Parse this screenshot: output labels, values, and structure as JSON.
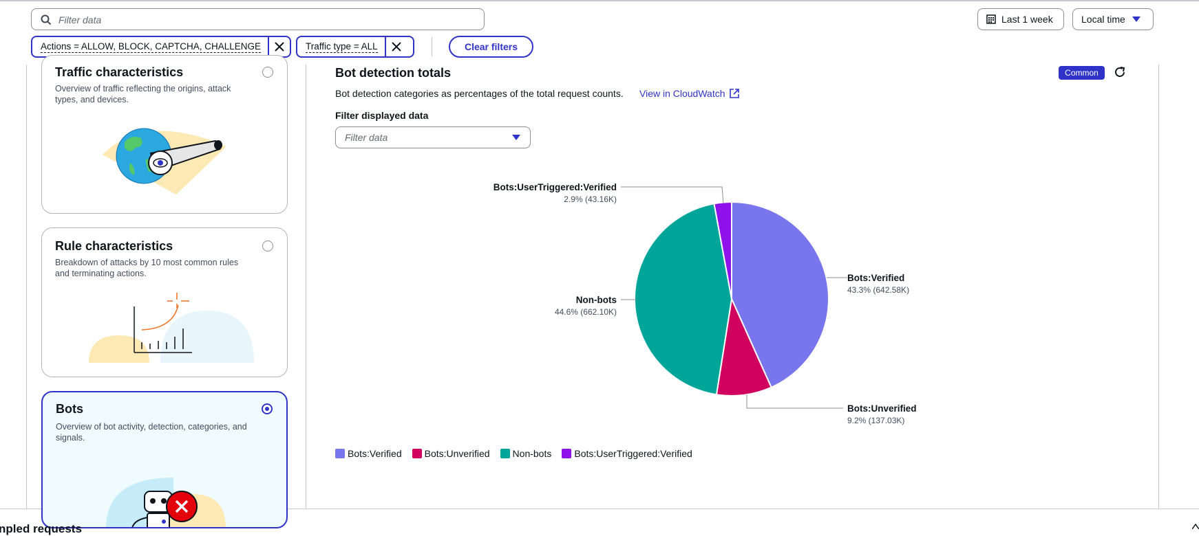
{
  "toolbar": {
    "search_placeholder": "Filter data",
    "time_range_label": "Last 1 week",
    "time_zone_label": "Local time",
    "filters": [
      {
        "label": "Actions = ALLOW, BLOCK, CAPTCHA, CHALLENGE"
      },
      {
        "label": "Traffic type = ALL"
      }
    ],
    "clear_filters_label": "Clear filters"
  },
  "cards": [
    {
      "title": "Traffic characteristics",
      "description": "Overview of traffic reflecting the origins, attack types, and devices.",
      "selected": false
    },
    {
      "title": "Rule characteristics",
      "description": "Breakdown of attacks by 10 most common rules and terminating actions.",
      "selected": false
    },
    {
      "title": "Bots",
      "description": "Overview of bot activity, detection, categories, and signals.",
      "selected": true
    }
  ],
  "panel": {
    "title": "Bot detection totals",
    "badge": "Common",
    "description": "Bot detection categories as percentages of the total request counts.",
    "cloudwatch_link": "View in CloudWatch",
    "filter_label": "Filter displayed data",
    "filter_placeholder": "Filter data"
  },
  "chart_data": {
    "type": "pie",
    "title": "Bot detection totals",
    "slices": [
      {
        "name": "Bots:Verified",
        "percent": 43.3,
        "count_label": "642.58K",
        "value_label": "43.3% (642.58K)",
        "color": "#7875ed"
      },
      {
        "name": "Bots:Unverified",
        "percent": 9.2,
        "count_label": "137.03K",
        "value_label": "9.2% (137.03K)",
        "color": "#d1025f"
      },
      {
        "name": "Non-bots",
        "percent": 44.6,
        "count_label": "662.10K",
        "value_label": "44.6% (662.10K)",
        "color": "#00a59a"
      },
      {
        "name": "Bots:UserTriggered:Verified",
        "percent": 2.9,
        "count_label": "43.16K",
        "value_label": "2.9% (43.16K)",
        "color": "#9012ea"
      }
    ],
    "legend_placement": "bottom-left"
  },
  "footer": {
    "section_title": "npled requests"
  }
}
